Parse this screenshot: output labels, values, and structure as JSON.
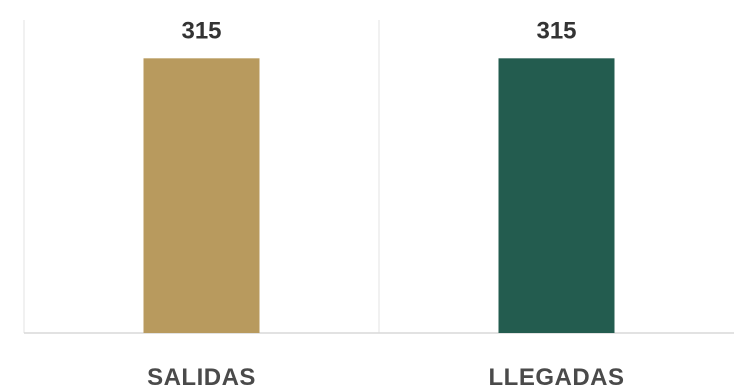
{
  "chart_data": {
    "type": "bar",
    "categories": [
      "SALIDAS",
      "LLEGADAS"
    ],
    "values": [
      315,
      315
    ],
    "data_labels": [
      "315",
      "315"
    ],
    "colors": [
      "#B89A5E",
      "#235C4F"
    ],
    "title": "",
    "xlabel": "",
    "ylabel": "",
    "ylim": [
      0,
      336
    ],
    "grid": false,
    "legend": "none"
  },
  "style": {
    "axis_color": "#d9d9d9",
    "divider_color": "#e3e3e3"
  }
}
